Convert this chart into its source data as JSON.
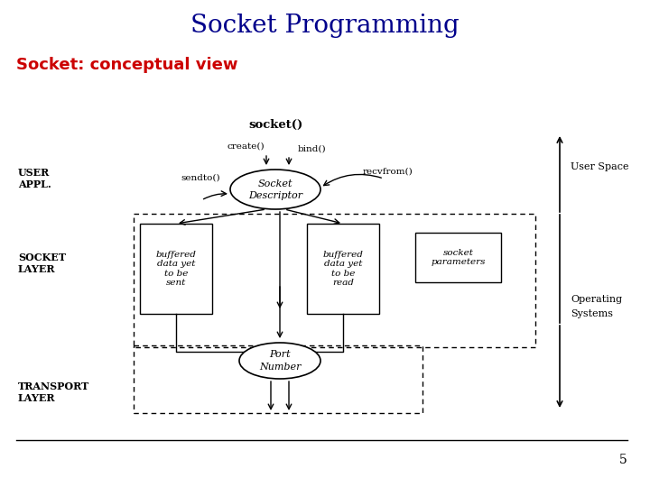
{
  "title": "Socket Programming",
  "title_color": "#00008B",
  "title_fontsize": 20,
  "subtitle": "Socket: conceptual view",
  "subtitle_color": "#CC0000",
  "subtitle_fontsize": 13,
  "page_number": "5",
  "bg_color": "#ffffff"
}
